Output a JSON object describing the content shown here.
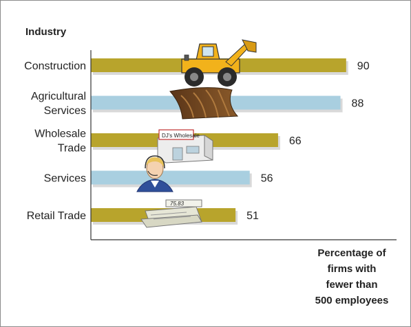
{
  "chart_data": {
    "type": "bar",
    "orientation": "horizontal",
    "title": "Industry",
    "xlabel": "Percentage of firms with fewer than 500 employees",
    "xlabel_lines": [
      "Percentage of",
      "firms with",
      "fewer than",
      "500 employees"
    ],
    "categories": [
      [
        "Construction"
      ],
      [
        "Agricultural",
        "Services"
      ],
      [
        "Wholesale",
        "Trade"
      ],
      [
        "Services"
      ],
      [
        "Retail Trade"
      ]
    ],
    "values": [
      90,
      88,
      66,
      56,
      51
    ],
    "value_labels": [
      "90",
      "88",
      "66",
      "56",
      "51"
    ],
    "bar_colors": [
      "#b8a42c",
      "#a9cfe0",
      "#b8a42c",
      "#a9cfe0",
      "#b8a42c"
    ],
    "xlim": [
      0,
      100
    ],
    "grid": false,
    "legend": "none",
    "illustrations": [
      "bulldozer-icon",
      "plowed-field-icon",
      "storefront-icon",
      "headset-agent-icon",
      "cash-register-icon"
    ],
    "store_sign": "DJ's Wholesale",
    "register_display": "75.83"
  }
}
